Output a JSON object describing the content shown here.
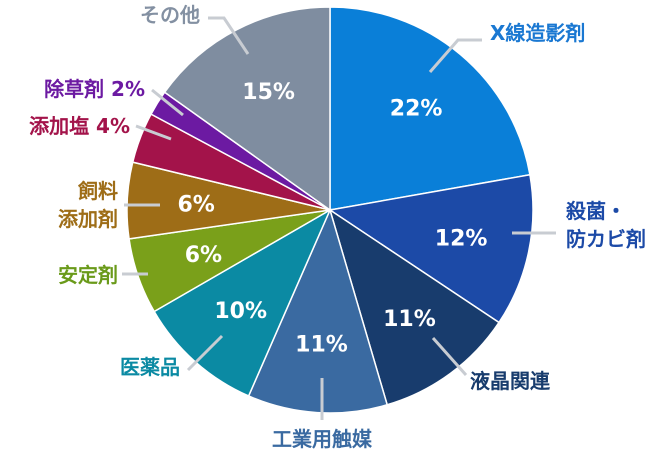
{
  "chart_data": {
    "type": "pie",
    "title": "",
    "start_angle_deg": 0,
    "direction": "clockwise",
    "slices": [
      {
        "label": "X線造影剤",
        "value": 22,
        "value_label": "22%",
        "color": "#0a7fd8",
        "label_color": "#1a78d2"
      },
      {
        "label": "殺菌・防カビ剤",
        "label_lines": [
          "殺菌・",
          "防カビ剤"
        ],
        "value": 12,
        "value_label": "12%",
        "color": "#1c4aa7",
        "label_color": "#1c4aa7"
      },
      {
        "label": "液晶関連",
        "value": 11,
        "value_label": "11%",
        "color": "#183c6d",
        "label_color": "#183c6d"
      },
      {
        "label": "工業用触媒",
        "value": 11,
        "value_label": "11%",
        "color": "#3a6aa1",
        "label_color": "#3a6aa1"
      },
      {
        "label": "医薬品",
        "value": 10,
        "value_label": "10%",
        "color": "#0b8aa3",
        "label_color": "#0b8aa3"
      },
      {
        "label": "安定剤",
        "value": 6,
        "value_label": "6%",
        "color": "#7aa01a",
        "label_color": "#6a9a1a"
      },
      {
        "label": "飼料添加剤",
        "label_lines": [
          "飼料",
          "添加剤"
        ],
        "value": 6,
        "value_label": "6%",
        "color": "#9e6d17",
        "label_color": "#9e6d17"
      },
      {
        "label": "添加塩 4%",
        "value": 4,
        "value_label": "",
        "color": "#a3134a",
        "label_color": "#a3134a"
      },
      {
        "label": "除草剤 2%",
        "value": 2,
        "value_label": "",
        "color": "#6c1aa2",
        "label_color": "#6c1aa2"
      },
      {
        "label": "その他",
        "value": 15,
        "value_label": "15%",
        "color": "#7f8da0",
        "label_color": "#8390a2"
      }
    ]
  }
}
